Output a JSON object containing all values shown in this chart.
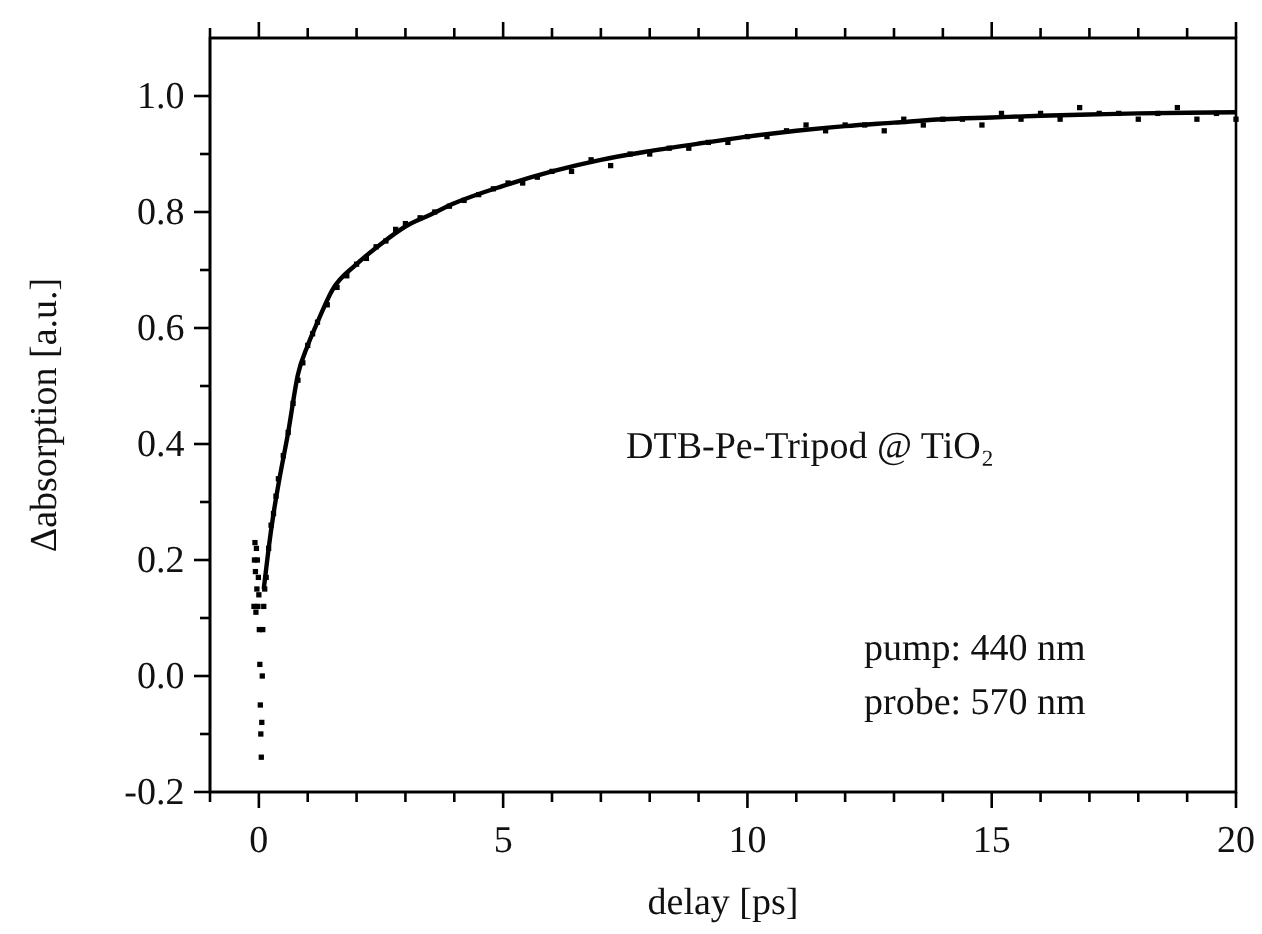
{
  "chart_data": {
    "type": "scatter",
    "xlabel": "delay [ps]",
    "ylabel": "Δabsorption [a.u.]",
    "annotations": [
      "DTB-Pe-Tripod @ TiO₂",
      "pump: 440 nm",
      "probe: 570 nm"
    ],
    "xlim": [
      -1,
      20
    ],
    "ylim": [
      -0.2,
      1.1
    ],
    "xticks": [
      {
        "value": -1,
        "label": null
      },
      0,
      {
        "value": 1,
        "label": null
      },
      {
        "value": 2,
        "label": null
      },
      {
        "value": 3,
        "label": null
      },
      {
        "value": 4,
        "label": null
      },
      5,
      {
        "value": 6,
        "label": null
      },
      {
        "value": 7,
        "label": null
      },
      {
        "value": 8,
        "label": null
      },
      {
        "value": 9,
        "label": null
      },
      10,
      {
        "value": 11,
        "label": null
      },
      {
        "value": 12,
        "label": null
      },
      {
        "value": 13,
        "label": null
      },
      {
        "value": 14,
        "label": null
      },
      15,
      {
        "value": 16,
        "label": null
      },
      {
        "value": 17,
        "label": null
      },
      {
        "value": 18,
        "label": null
      },
      {
        "value": 19,
        "label": null
      },
      20
    ],
    "yticks": [
      -0.2,
      {
        "value": -0.1,
        "label": null
      },
      {
        "value": 0,
        "label": "0.0"
      },
      {
        "value": 0.1,
        "label": null
      },
      0.2,
      {
        "value": 0.3,
        "label": null
      },
      0.4,
      {
        "value": 0.5,
        "label": null
      },
      0.6,
      {
        "value": 0.7,
        "label": null
      },
      0.8,
      {
        "value": 0.9,
        "label": null
      },
      {
        "value": 1,
        "label": "1.0"
      }
    ],
    "marker": "square",
    "grid": false,
    "series": [
      {
        "color": "#000000",
        "x": [
          -0.1,
          -0.09,
          -0.08,
          -0.07,
          -0.06,
          -0.05,
          -0.04,
          -0.03,
          -0.02,
          -0.01,
          0,
          0.01,
          0.02,
          0.03,
          0.04,
          0.05,
          0.06,
          0.07,
          0.08,
          0.1,
          0.12,
          0.15,
          0.2,
          0.25,
          0.3,
          0.35,
          0.4,
          0.5,
          0.6,
          0.7,
          0.8,
          0.9,
          1.0,
          1.1,
          1.2,
          1.4,
          1.6,
          1.8,
          2.0,
          2.2,
          2.4,
          2.6,
          2.8,
          3.0,
          3.3,
          3.6,
          3.9,
          4.2,
          4.5,
          4.8,
          5.1,
          5.4,
          5.7,
          6.0,
          6.4,
          6.8,
          7.2,
          7.6,
          8.0,
          8.4,
          8.8,
          9.2,
          9.6,
          10.0,
          10.4,
          10.8,
          11.2,
          11.6,
          12.0,
          12.4,
          12.8,
          13.2,
          13.6,
          14.0,
          14.4,
          14.8,
          15.2,
          15.6,
          16.0,
          16.4,
          16.8,
          17.2,
          17.6,
          18.0,
          18.4,
          18.8,
          19.2,
          19.6,
          20.0
        ],
        "values": [
          0.12,
          0.2,
          0.23,
          0.18,
          0.11,
          0.22,
          0.15,
          0.2,
          0.12,
          0.17,
          0.14,
          0.08,
          0.02,
          -0.05,
          -0.1,
          -0.14,
          -0.08,
          0.0,
          0.08,
          0.12,
          0.15,
          0.17,
          0.22,
          0.26,
          0.28,
          0.31,
          0.34,
          0.38,
          0.42,
          0.47,
          0.51,
          0.54,
          0.57,
          0.59,
          0.61,
          0.64,
          0.67,
          0.69,
          0.71,
          0.72,
          0.74,
          0.75,
          0.77,
          0.78,
          0.79,
          0.8,
          0.81,
          0.82,
          0.83,
          0.84,
          0.85,
          0.85,
          0.86,
          0.87,
          0.87,
          0.89,
          0.88,
          0.9,
          0.9,
          0.91,
          0.91,
          0.92,
          0.92,
          0.93,
          0.93,
          0.94,
          0.95,
          0.94,
          0.95,
          0.95,
          0.94,
          0.96,
          0.95,
          0.96,
          0.96,
          0.95,
          0.97,
          0.96,
          0.97,
          0.96,
          0.98,
          0.97,
          0.97,
          0.96,
          0.97,
          0.98,
          0.96,
          0.97,
          0.96
        ]
      },
      {
        "type": "line",
        "color": "#000000",
        "marker": "none",
        "x": [
          0.1,
          0.2,
          0.3,
          0.4,
          0.6,
          0.8,
          1.0,
          1.2,
          1.5,
          2,
          2.5,
          3,
          3.5,
          4,
          5,
          6,
          7,
          8,
          9,
          10,
          11,
          12,
          13,
          14,
          15,
          16,
          17,
          18,
          19,
          20
        ],
        "values": [
          0.15,
          0.22,
          0.28,
          0.33,
          0.42,
          0.52,
          0.57,
          0.61,
          0.665,
          0.71,
          0.745,
          0.775,
          0.795,
          0.815,
          0.845,
          0.87,
          0.89,
          0.905,
          0.918,
          0.93,
          0.94,
          0.948,
          0.954,
          0.96,
          0.963,
          0.966,
          0.968,
          0.97,
          0.971,
          0.972
        ]
      }
    ]
  }
}
